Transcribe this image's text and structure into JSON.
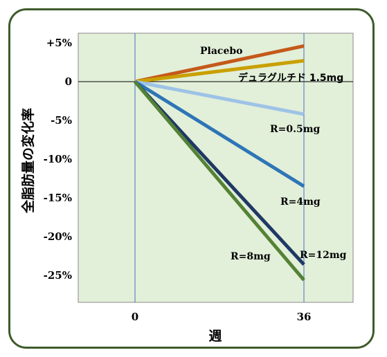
{
  "chart_data": {
    "type": "line",
    "title": "",
    "xlabel": "週",
    "ylabel": "全脂肪量の変化率",
    "x": [
      0,
      36
    ],
    "x_tick_labels": [
      "0",
      "36"
    ],
    "xlim": [
      -10,
      40
    ],
    "ylim": [
      -28,
      6
    ],
    "y_ticks": [
      5,
      0,
      -5,
      -10,
      -15,
      -20,
      -25
    ],
    "y_tick_labels": [
      "+5%",
      "0",
      "-5%",
      "-10%",
      "-15%",
      "-20%",
      "-25%"
    ],
    "grid": "vertical lines at 0 and 36",
    "plot_background": "#e2efd9",
    "series": [
      {
        "name": "Placebo",
        "color": "#c5591a",
        "values": [
          0,
          4.6
        ]
      },
      {
        "name": "デュラグルチド 1.5mg",
        "color": "#c9a000",
        "values": [
          0,
          2.7
        ]
      },
      {
        "name": "R=0.5mg",
        "color": "#9dc3e6",
        "values": [
          0,
          -4.2
        ]
      },
      {
        "name": "R=4mg",
        "color": "#2e75b6",
        "values": [
          0,
          -13.5
        ]
      },
      {
        "name": "R=12mg",
        "color": "#1f3864",
        "values": [
          0,
          -23.6
        ]
      },
      {
        "name": "R=8mg",
        "color": "#548235",
        "values": [
          0,
          -25.6
        ]
      }
    ]
  }
}
